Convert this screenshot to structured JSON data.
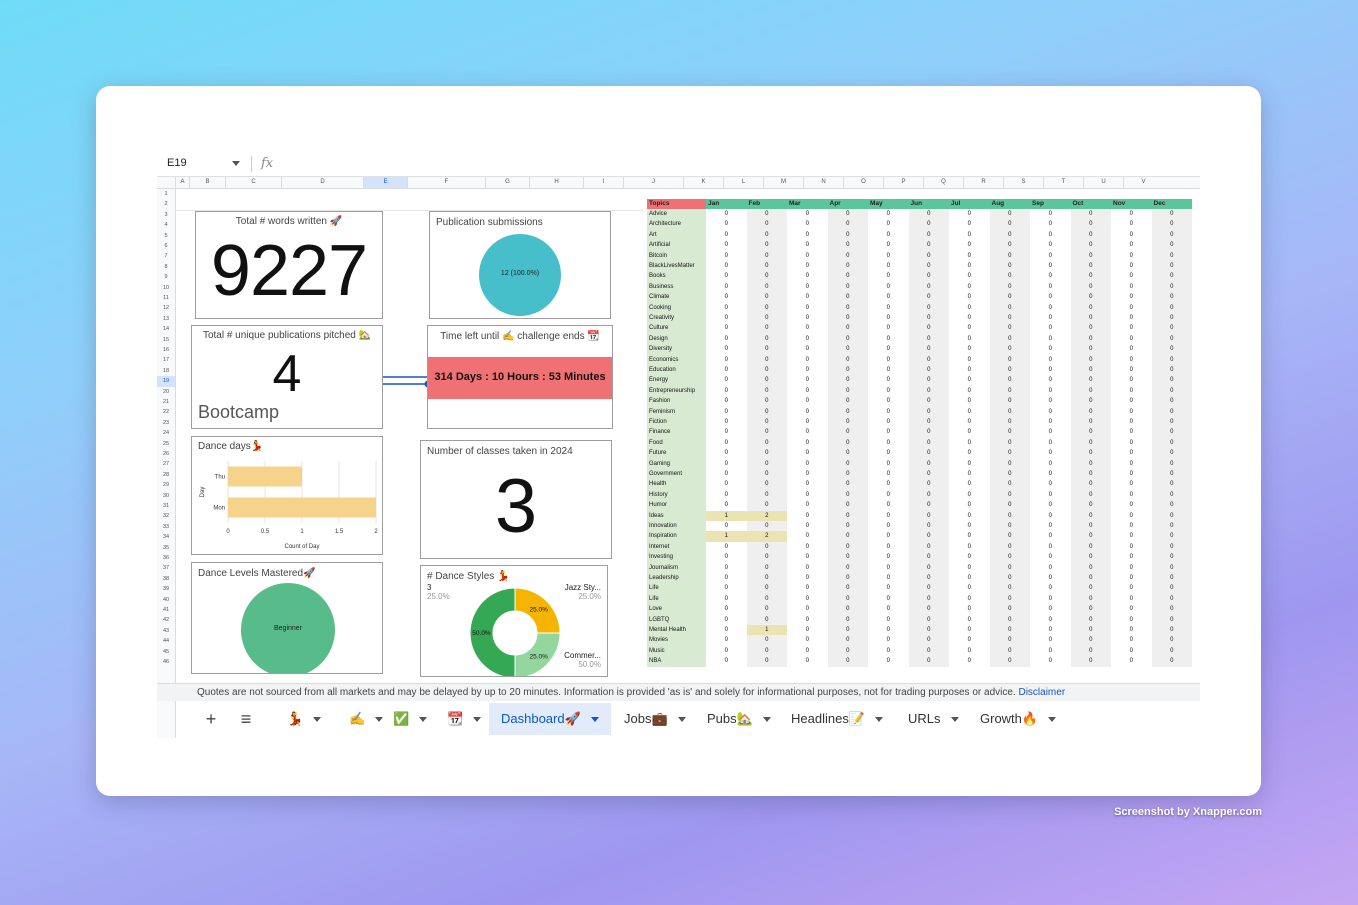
{
  "cell": {
    "ref": "E19",
    "fx": "fx"
  },
  "columns": [
    "A",
    "B",
    "C",
    "D",
    "E",
    "F",
    "G",
    "H",
    "I",
    "J",
    "K",
    "L",
    "M",
    "N",
    "O",
    "P",
    "Q",
    "R",
    "S",
    "T",
    "U",
    "V"
  ],
  "selected_column": "E",
  "selected_row": 19,
  "rows_count": 46,
  "widgets": {
    "words": {
      "title": "Total # words written 🚀",
      "value": "9227"
    },
    "submissions": {
      "title": "Publication submissions",
      "slice_label": "12 (100.0%)",
      "color": "#46bfcb"
    },
    "pubs": {
      "title": "Total # unique publications pitched 🏡",
      "value": "4",
      "sub": "Bootcamp"
    },
    "countdown": {
      "title": "Time left until ✍️ challenge ends 📆",
      "value": "314 Days : 10 Hours : 53 Minutes",
      "color": "#f07174"
    },
    "dance_days": {
      "title": "Dance days💃"
    },
    "classes": {
      "title": "Number of classes taken in 2024",
      "value": "3"
    },
    "levels": {
      "title": "Dance Levels Mastered🚀",
      "slice_label": "Beginner",
      "color": "#57bb8a"
    },
    "styles": {
      "title": "# Dance Styles 💃"
    }
  },
  "chart_data": [
    {
      "type": "bar",
      "orientation": "horizontal",
      "title": "Dance days💃",
      "categories": [
        "Thu",
        "Mon"
      ],
      "values": [
        1,
        2
      ],
      "xlabel": "Count of Day",
      "ylabel": "Day",
      "xlim": [
        0,
        2
      ],
      "xticks": [
        "0",
        "0.5",
        "1",
        "1.5",
        "2"
      ],
      "color": "#f6d38a"
    },
    {
      "type": "pie",
      "title": "# Dance Styles 💃",
      "donut": true,
      "slices": [
        {
          "value": 25,
          "label": "25.0%",
          "color": "#f4b400"
        },
        {
          "value": 25,
          "label": "25.0%",
          "color": "#93d79f"
        },
        {
          "value": 50,
          "label": "50.0%",
          "color": "#34a853"
        }
      ],
      "callouts": [
        {
          "name": "3",
          "pct": "25.0%"
        },
        {
          "name": "Jazz Sty...",
          "pct": "25.0%"
        },
        {
          "name": "Commer...",
          "pct": "50.0%"
        }
      ]
    }
  ],
  "table": {
    "header": "Topics",
    "months": [
      "Jan",
      "Feb",
      "Mar",
      "Apr",
      "May",
      "Jun",
      "Jul",
      "Aug",
      "Sep",
      "Oct",
      "Nov",
      "Dec"
    ],
    "rows": [
      {
        "topic": "Advice",
        "values": [
          0,
          0,
          0,
          0,
          0,
          0,
          0,
          0,
          0,
          0,
          0,
          0
        ]
      },
      {
        "topic": "Architecture",
        "values": [
          0,
          0,
          0,
          0,
          0,
          0,
          0,
          0,
          0,
          0,
          0,
          0
        ]
      },
      {
        "topic": "Art",
        "values": [
          0,
          0,
          0,
          0,
          0,
          0,
          0,
          0,
          0,
          0,
          0,
          0
        ]
      },
      {
        "topic": "Artificial",
        "values": [
          0,
          0,
          0,
          0,
          0,
          0,
          0,
          0,
          0,
          0,
          0,
          0
        ]
      },
      {
        "topic": "Bitcoin",
        "values": [
          0,
          0,
          0,
          0,
          0,
          0,
          0,
          0,
          0,
          0,
          0,
          0
        ]
      },
      {
        "topic": "BlackLivesMatter",
        "values": [
          0,
          0,
          0,
          0,
          0,
          0,
          0,
          0,
          0,
          0,
          0,
          0
        ]
      },
      {
        "topic": "Books",
        "values": [
          0,
          0,
          0,
          0,
          0,
          0,
          0,
          0,
          0,
          0,
          0,
          0
        ]
      },
      {
        "topic": "Business",
        "values": [
          0,
          0,
          0,
          0,
          0,
          0,
          0,
          0,
          0,
          0,
          0,
          0
        ]
      },
      {
        "topic": "Climate",
        "values": [
          0,
          0,
          0,
          0,
          0,
          0,
          0,
          0,
          0,
          0,
          0,
          0
        ]
      },
      {
        "topic": "Cooking",
        "values": [
          0,
          0,
          0,
          0,
          0,
          0,
          0,
          0,
          0,
          0,
          0,
          0
        ]
      },
      {
        "topic": "Creativity",
        "values": [
          0,
          0,
          0,
          0,
          0,
          0,
          0,
          0,
          0,
          0,
          0,
          0
        ]
      },
      {
        "topic": "Culture",
        "values": [
          0,
          0,
          0,
          0,
          0,
          0,
          0,
          0,
          0,
          0,
          0,
          0
        ]
      },
      {
        "topic": "Design",
        "values": [
          0,
          0,
          0,
          0,
          0,
          0,
          0,
          0,
          0,
          0,
          0,
          0
        ]
      },
      {
        "topic": "Diversity",
        "values": [
          0,
          0,
          0,
          0,
          0,
          0,
          0,
          0,
          0,
          0,
          0,
          0
        ]
      },
      {
        "topic": "Economics",
        "values": [
          0,
          0,
          0,
          0,
          0,
          0,
          0,
          0,
          0,
          0,
          0,
          0
        ]
      },
      {
        "topic": "Education",
        "values": [
          0,
          0,
          0,
          0,
          0,
          0,
          0,
          0,
          0,
          0,
          0,
          0
        ]
      },
      {
        "topic": "Energy",
        "values": [
          0,
          0,
          0,
          0,
          0,
          0,
          0,
          0,
          0,
          0,
          0,
          0
        ]
      },
      {
        "topic": "Entrepreneurship",
        "values": [
          0,
          0,
          0,
          0,
          0,
          0,
          0,
          0,
          0,
          0,
          0,
          0
        ]
      },
      {
        "topic": "Fashion",
        "values": [
          0,
          0,
          0,
          0,
          0,
          0,
          0,
          0,
          0,
          0,
          0,
          0
        ]
      },
      {
        "topic": "Feminism",
        "values": [
          0,
          0,
          0,
          0,
          0,
          0,
          0,
          0,
          0,
          0,
          0,
          0
        ]
      },
      {
        "topic": "Fiction",
        "values": [
          0,
          0,
          0,
          0,
          0,
          0,
          0,
          0,
          0,
          0,
          0,
          0
        ]
      },
      {
        "topic": "Finance",
        "values": [
          0,
          0,
          0,
          0,
          0,
          0,
          0,
          0,
          0,
          0,
          0,
          0
        ]
      },
      {
        "topic": "Food",
        "values": [
          0,
          0,
          0,
          0,
          0,
          0,
          0,
          0,
          0,
          0,
          0,
          0
        ]
      },
      {
        "topic": "Future",
        "values": [
          0,
          0,
          0,
          0,
          0,
          0,
          0,
          0,
          0,
          0,
          0,
          0
        ]
      },
      {
        "topic": "Gaming",
        "values": [
          0,
          0,
          0,
          0,
          0,
          0,
          0,
          0,
          0,
          0,
          0,
          0
        ]
      },
      {
        "topic": "Government",
        "values": [
          0,
          0,
          0,
          0,
          0,
          0,
          0,
          0,
          0,
          0,
          0,
          0
        ]
      },
      {
        "topic": "Health",
        "values": [
          0,
          0,
          0,
          0,
          0,
          0,
          0,
          0,
          0,
          0,
          0,
          0
        ]
      },
      {
        "topic": "History",
        "values": [
          0,
          0,
          0,
          0,
          0,
          0,
          0,
          0,
          0,
          0,
          0,
          0
        ]
      },
      {
        "topic": "Humor",
        "values": [
          0,
          0,
          0,
          0,
          0,
          0,
          0,
          0,
          0,
          0,
          0,
          0
        ]
      },
      {
        "topic": "Ideas",
        "values": [
          1,
          2,
          0,
          0,
          0,
          0,
          0,
          0,
          0,
          0,
          0,
          0
        ],
        "highlight": [
          0,
          1
        ]
      },
      {
        "topic": "Innovation",
        "values": [
          0,
          0,
          0,
          0,
          0,
          0,
          0,
          0,
          0,
          0,
          0,
          0
        ]
      },
      {
        "topic": "Inspiration",
        "values": [
          1,
          2,
          0,
          0,
          0,
          0,
          0,
          0,
          0,
          0,
          0,
          0
        ],
        "highlight": [
          0,
          1
        ]
      },
      {
        "topic": "Internet",
        "values": [
          0,
          0,
          0,
          0,
          0,
          0,
          0,
          0,
          0,
          0,
          0,
          0
        ]
      },
      {
        "topic": "Investing",
        "values": [
          0,
          0,
          0,
          0,
          0,
          0,
          0,
          0,
          0,
          0,
          0,
          0
        ]
      },
      {
        "topic": "Journalism",
        "values": [
          0,
          0,
          0,
          0,
          0,
          0,
          0,
          0,
          0,
          0,
          0,
          0
        ]
      },
      {
        "topic": "Leadership",
        "values": [
          0,
          0,
          0,
          0,
          0,
          0,
          0,
          0,
          0,
          0,
          0,
          0
        ]
      },
      {
        "topic": "Life",
        "values": [
          0,
          0,
          0,
          0,
          0,
          0,
          0,
          0,
          0,
          0,
          0,
          0
        ]
      },
      {
        "topic": "Life",
        "values": [
          0,
          0,
          0,
          0,
          0,
          0,
          0,
          0,
          0,
          0,
          0,
          0
        ]
      },
      {
        "topic": "Love",
        "values": [
          0,
          0,
          0,
          0,
          0,
          0,
          0,
          0,
          0,
          0,
          0,
          0
        ]
      },
      {
        "topic": "LGBTQ",
        "values": [
          0,
          0,
          0,
          0,
          0,
          0,
          0,
          0,
          0,
          0,
          0,
          0
        ]
      },
      {
        "topic": "Mental Health",
        "values": [
          0,
          1,
          0,
          0,
          0,
          0,
          0,
          0,
          0,
          0,
          0,
          0
        ],
        "highlight": [
          1
        ]
      },
      {
        "topic": "Movies",
        "values": [
          0,
          0,
          0,
          0,
          0,
          0,
          0,
          0,
          0,
          0,
          0,
          0
        ]
      },
      {
        "topic": "Music",
        "values": [
          0,
          0,
          0,
          0,
          0,
          0,
          0,
          0,
          0,
          0,
          0,
          0
        ]
      },
      {
        "topic": "NBA",
        "values": [
          0,
          0,
          0,
          0,
          0,
          0,
          0,
          0,
          0,
          0,
          0,
          0
        ]
      }
    ]
  },
  "notice": {
    "text": "Quotes are not sourced from all markets and may be delayed by up to 20 minutes. Information is provided 'as is' and solely for informational purposes, not for trading purposes or advice.",
    "link": "Disclaimer"
  },
  "tabs": [
    {
      "label": "💃"
    },
    {
      "label": "✍️"
    },
    {
      "label": "✅"
    },
    {
      "label": "📆"
    },
    {
      "label": "Dashboard🚀",
      "active": true
    },
    {
      "label": "Jobs💼"
    },
    {
      "label": "Pubs🏡"
    },
    {
      "label": "Headlines📝"
    },
    {
      "label": "URLs"
    },
    {
      "label": "Growth🔥"
    }
  ],
  "tools": {
    "add": "+",
    "menu": "≡"
  },
  "watermark": "Screenshot by Xnapper.com"
}
